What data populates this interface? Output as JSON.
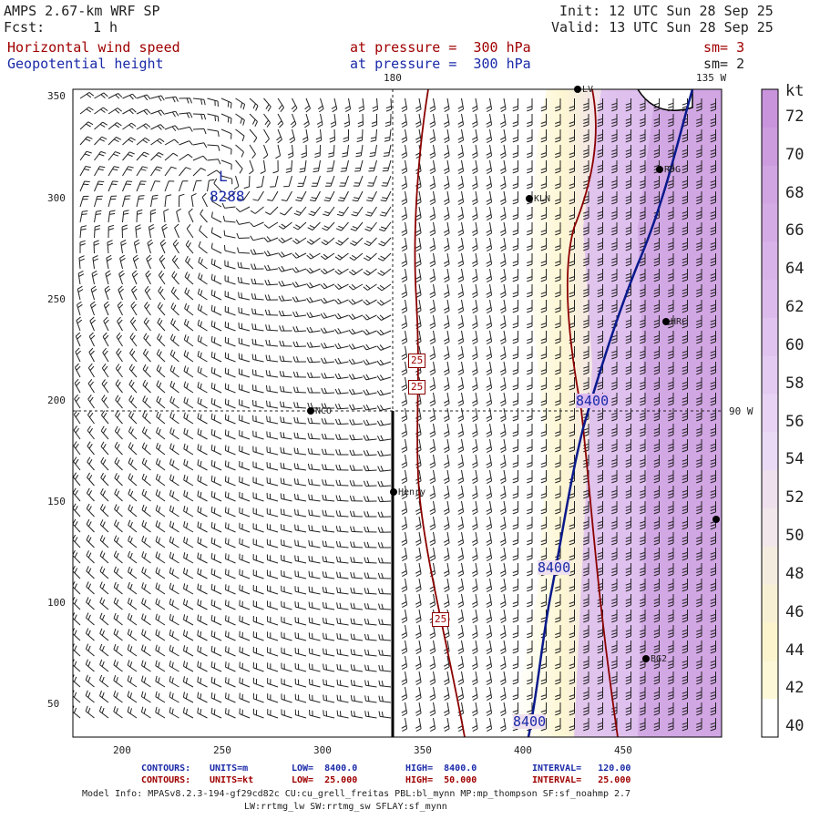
{
  "header": {
    "model": "AMPS 2.67-km WRF SP",
    "fcst_label": "Fcst:",
    "fcst_value": "1 h",
    "init": "Init: 12 UTC Sun 28 Sep 25",
    "valid": "Valid: 13 UTC Sun 28 Sep 25",
    "field1": "Horizontal wind speed",
    "field1_level": "at pressure =  300 hPa",
    "field1_sm": "sm= 3",
    "field2": "Geopotential height",
    "field2_level": "at pressure =  300 hPa",
    "field2_sm": "sm= 2"
  },
  "map": {
    "top_label_lon": "180",
    "top_right_label": "135 W",
    "right_label": "90 W",
    "x_ticks": [
      "200",
      "250",
      "300",
      "350",
      "400",
      "450"
    ],
    "y_ticks": [
      "350",
      "300",
      "250",
      "200",
      "150",
      "100",
      "50"
    ],
    "low_label": "L",
    "low_value": "8288",
    "height_contour_labels": [
      "8400",
      "8400",
      "8400"
    ],
    "speed_contour_labels": [
      "25",
      "25",
      "25"
    ],
    "stations": [
      "KLN",
      "RDG",
      "HRC",
      "NCO",
      "Henry",
      "BG2",
      "LV"
    ]
  },
  "colorbar": {
    "unit": "kt",
    "labels": [
      "72",
      "70",
      "68",
      "66",
      "64",
      "62",
      "60",
      "58",
      "56",
      "54",
      "52",
      "50",
      "48",
      "46",
      "44",
      "42",
      "40"
    ],
    "colors": [
      "#c994dc",
      "#cd9cdf",
      "#d1a4e2",
      "#d4abe5",
      "#d8b3e9",
      "#dcbbec",
      "#e0c3ef",
      "#e4cbf2",
      "#e8d3f5",
      "#ebdaf6",
      "#efe0ee",
      "#f2e7ea",
      "#f5ece0",
      "#f8f0d4",
      "#fbf4cc",
      "#fdf8d8",
      "#ffffff"
    ]
  },
  "footer": {
    "line1_label": "CONTOURS:",
    "line1_units": "UNITS=m",
    "line1_low": "LOW=  8400.0",
    "line1_high": "HIGH=  8400.0",
    "line1_interval": "INTERVAL=   120.00",
    "line2_label": "CONTOURS:",
    "line2_units": "UNITS=kt",
    "line2_low": "LOW=  25.000",
    "line2_high": "HIGH=  50.000",
    "line2_interval": "INTERVAL=   25.000",
    "model_info_1": "Model Info: MPASv8.2.3-194-gf29cd82c CU:cu_grell_freitas PBL:bl_mynn MP:mp_thompson SF:sf_noahmp 2.7",
    "model_info_2": "LW:rrtmg_lw SW:rrtmg_sw SFLAY:sf_mynn"
  }
}
